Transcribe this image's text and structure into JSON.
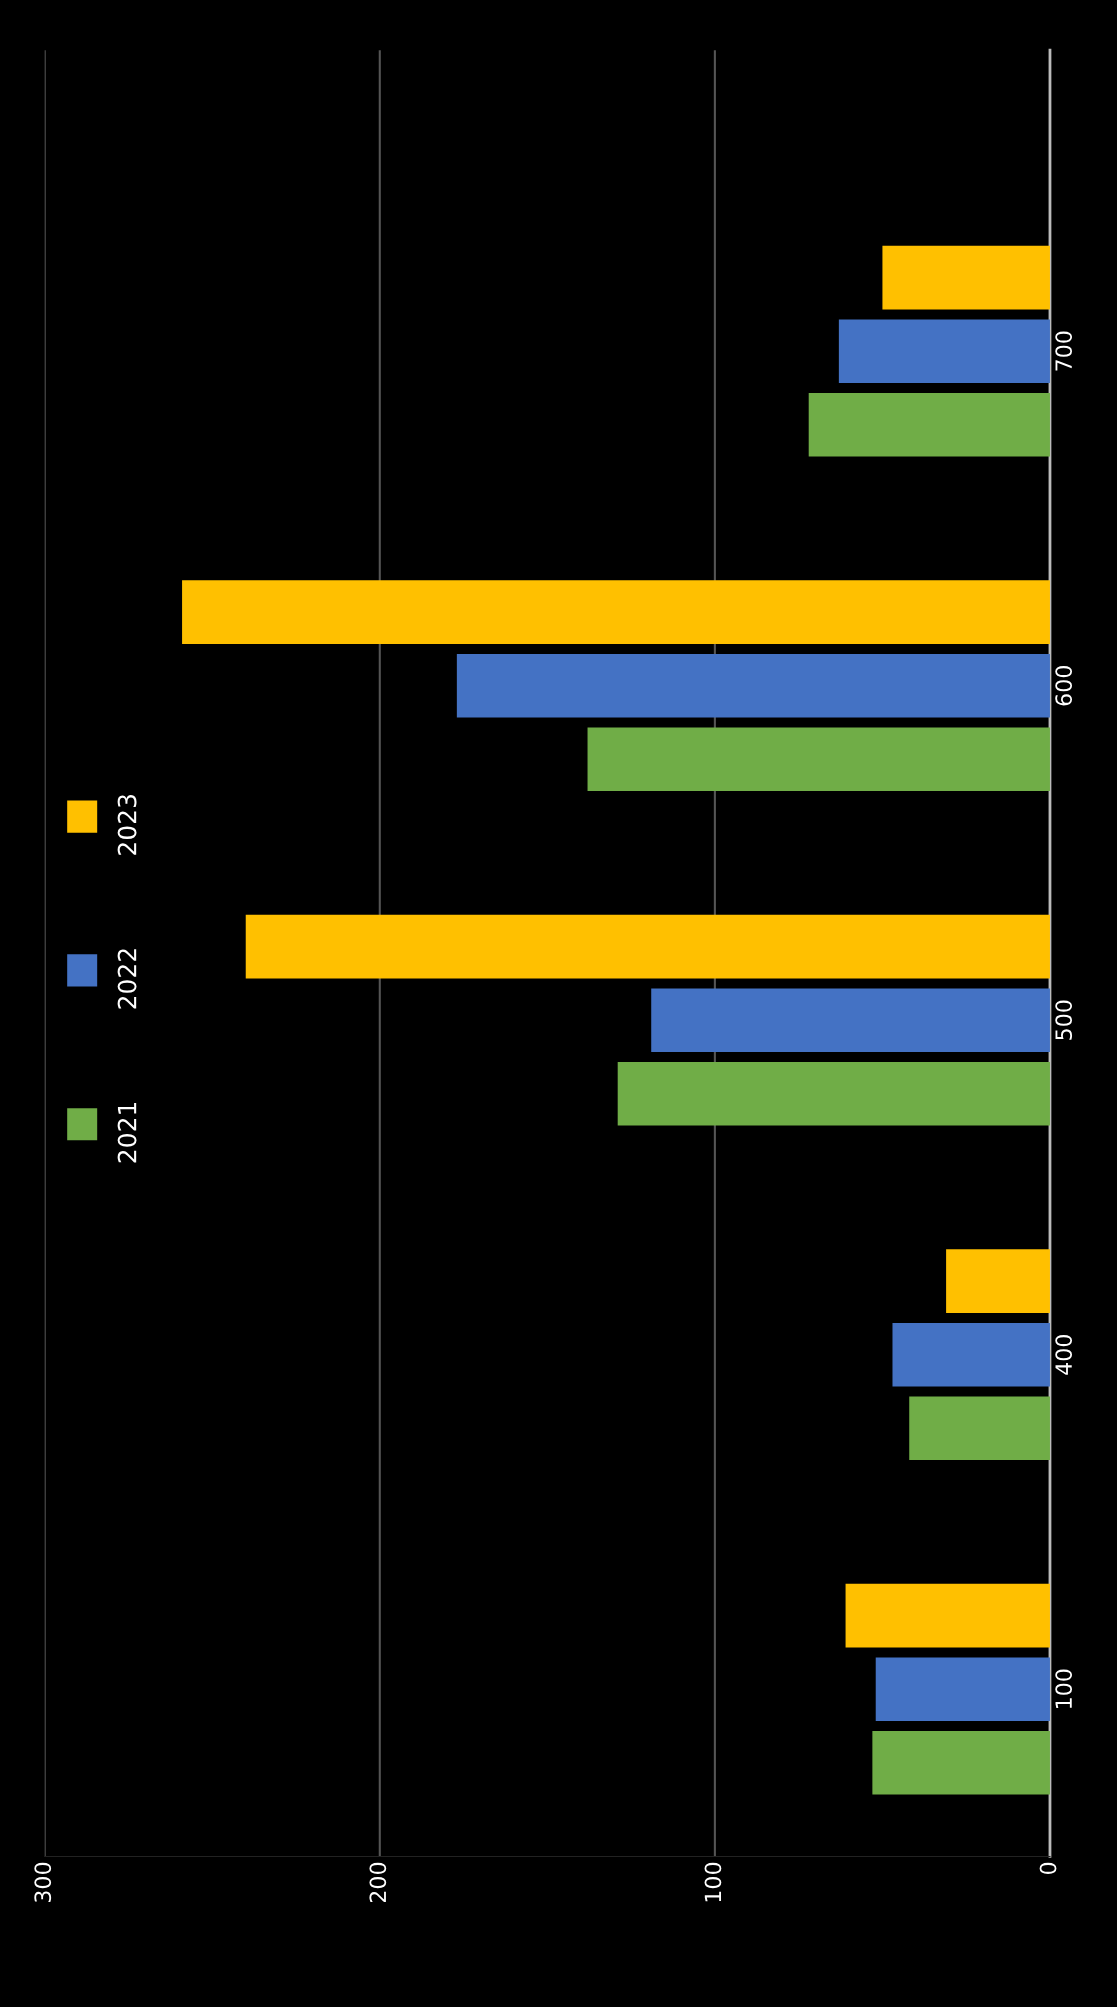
{
  "chart_data": {
    "type": "bar",
    "orientation": "horizontal",
    "categories": [
      "700",
      "600",
      "500",
      "400",
      "100"
    ],
    "series": [
      {
        "name": "2021",
        "color": "#70ad47",
        "values": [
          72,
          138,
          129,
          42,
          53
        ]
      },
      {
        "name": "2022",
        "color": "#4472c4",
        "values": [
          63,
          177,
          119,
          47,
          52
        ]
      },
      {
        "name": "2023",
        "color": "#ffc000",
        "values": [
          50,
          259,
          240,
          31,
          61
        ]
      }
    ],
    "xlim": [
      300,
      0
    ],
    "xticks": [
      0,
      100,
      200,
      300
    ],
    "grid": "x",
    "legend": "left"
  }
}
